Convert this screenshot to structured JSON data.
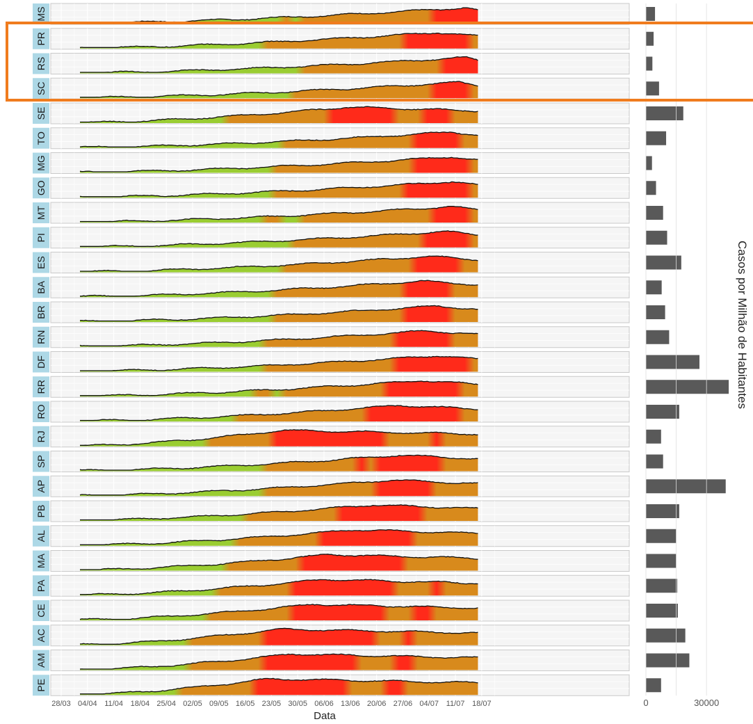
{
  "chart_data": {
    "type": "area",
    "title": "",
    "xlabel": "Data",
    "ylabel_right": "Casos por Milhão de Habitantes",
    "x_ticks": [
      "28/03",
      "04/04",
      "11/04",
      "18/04",
      "25/04",
      "02/05",
      "09/05",
      "16/05",
      "23/05",
      "30/05",
      "06/06",
      "13/06",
      "20/06",
      "27/06",
      "04/07",
      "11/07",
      "18/07"
    ],
    "bar_ticks": [
      "0",
      "30000"
    ],
    "bar_xlim": [
      0,
      42000
    ],
    "bar_tick_values": [
      0,
      30000
    ],
    "colors": {
      "low": "#9acd32",
      "mid": "#d88a1c",
      "high": "#ff2a1a",
      "strip": "#add8e6",
      "bar": "#595959",
      "highlight": "#f07c1e"
    },
    "highlighted_states": [
      "PR",
      "RS",
      "SC"
    ],
    "states": [
      {
        "name": "MS",
        "bar": 4500,
        "peak_day": 108
      },
      {
        "name": "PR",
        "bar": 3800,
        "peak_day": 100
      },
      {
        "name": "RS",
        "bar": 3200,
        "peak_day": 108
      },
      {
        "name": "SC",
        "bar": 6500,
        "peak_day": 106
      },
      {
        "name": "SE",
        "bar": 18500,
        "peak_day": 76
      },
      {
        "name": "TO",
        "bar": 10000,
        "peak_day": 104
      },
      {
        "name": "MG",
        "bar": 3000,
        "peak_day": 104
      },
      {
        "name": "GO",
        "bar": 5000,
        "peak_day": 104
      },
      {
        "name": "MT",
        "bar": 8500,
        "peak_day": 104
      },
      {
        "name": "PI",
        "bar": 10500,
        "peak_day": 102
      },
      {
        "name": "ES",
        "bar": 17500,
        "peak_day": 98
      },
      {
        "name": "BA",
        "bar": 7800,
        "peak_day": 96
      },
      {
        "name": "BR",
        "bar": 9500,
        "peak_day": 100
      },
      {
        "name": "RN",
        "bar": 11500,
        "peak_day": 97
      },
      {
        "name": "DF",
        "bar": 26500,
        "peak_day": 100
      },
      {
        "name": "RR",
        "bar": 41000,
        "peak_day": 96
      },
      {
        "name": "RO",
        "bar": 16500,
        "peak_day": 90
      },
      {
        "name": "RJ",
        "bar": 7500,
        "peak_day": 59
      },
      {
        "name": "SP",
        "bar": 8500,
        "peak_day": 90
      },
      {
        "name": "AP",
        "bar": 39500,
        "peak_day": 88
      },
      {
        "name": "PB",
        "bar": 16500,
        "peak_day": 83
      },
      {
        "name": "AL",
        "bar": 15000,
        "peak_day": 78
      },
      {
        "name": "MA",
        "bar": 15000,
        "peak_day": 71
      },
      {
        "name": "PA",
        "bar": 15500,
        "peak_day": 70
      },
      {
        "name": "CE",
        "bar": 15800,
        "peak_day": 67
      },
      {
        "name": "AC",
        "bar": 19500,
        "peak_day": 58
      },
      {
        "name": "AM",
        "bar": 21500,
        "peak_day": 61
      },
      {
        "name": "PE",
        "bar": 7500,
        "peak_day": 55
      }
    ]
  }
}
